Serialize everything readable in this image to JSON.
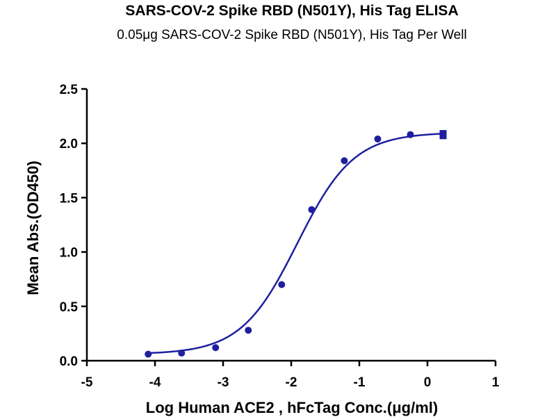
{
  "colors": {
    "series": "#1f1f9f",
    "axis": "#000000",
    "background": "#ffffff"
  },
  "chart_data": {
    "type": "scatter",
    "title": "SARS-COV-2 Spike RBD (N501Y), His Tag ELISA",
    "subtitle": "0.05μg SARS-COV-2 Spike RBD (N501Y),  His Tag Per Well",
    "xlabel": "Log Human ACE2 , hFcTag Conc.(μg/ml)",
    "ylabel": "Mean Abs.(OD450)",
    "xlim": [
      -5,
      1
    ],
    "ylim": [
      0,
      2.5
    ],
    "x_ticks": [
      -5,
      -4,
      -3,
      -2,
      -1,
      0,
      1
    ],
    "x_tick_labels": [
      "-5",
      "-4",
      "-3",
      "-2",
      "-1",
      "0",
      "1"
    ],
    "y_ticks": [
      0,
      0.5,
      1,
      1.5,
      2,
      2.5
    ],
    "y_tick_labels": [
      "0.0",
      "0.5",
      "1.0",
      "1.5",
      "2.0",
      "2.5"
    ],
    "grid": false,
    "series": [
      {
        "marker": "circle",
        "x": [
          -4.1,
          -3.61,
          -3.11,
          -2.63,
          -2.14,
          -1.7,
          -1.22,
          -0.73,
          -0.25
        ],
        "y": [
          0.06,
          0.07,
          0.12,
          0.28,
          0.7,
          1.39,
          1.84,
          2.04,
          2.08
        ]
      },
      {
        "marker": "square",
        "x": [
          0.23,
          0.23
        ],
        "y": [
          2.09,
          2.07
        ]
      }
    ],
    "fit_curve": {
      "type": "4PL",
      "bottom": 0.06,
      "top": 2.1,
      "log_ec50": -1.91,
      "hill_slope": 1.05
    }
  }
}
